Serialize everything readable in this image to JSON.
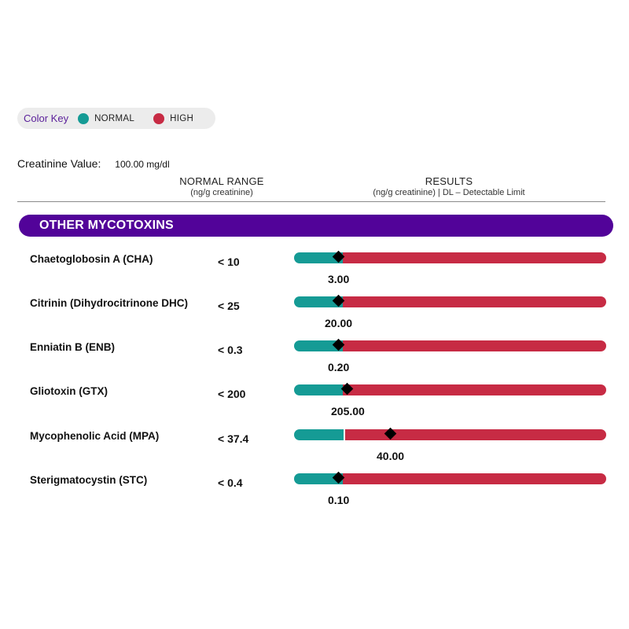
{
  "color_key": {
    "label": "Color Key",
    "items": [
      {
        "label": "NORMAL",
        "color": "#159b95"
      },
      {
        "label": "HIGH",
        "color": "#c72b44"
      }
    ]
  },
  "creatinine": {
    "label": "Creatinine Value:",
    "value": "100.00 mg/dl"
  },
  "headers": {
    "normal_range": "NORMAL RANGE",
    "normal_range_unit": "(ng/g creatinine)",
    "results": "RESULTS",
    "results_unit": "(ng/g creatinine) | DL – Detectable Limit"
  },
  "section": {
    "title": "OTHER MYCOTOXINS",
    "color": "#520399"
  },
  "rows": [
    {
      "name": "Chaetoglobosin A (CHA)",
      "range": "< 10",
      "result": "3.00",
      "status": "normal",
      "marker_fraction": 0.144
    },
    {
      "name": "Citrinin (Dihydrocitrinone DHC)",
      "range": "< 25",
      "result": "20.00",
      "status": "normal",
      "marker_fraction": 0.144
    },
    {
      "name": "Enniatin B (ENB)",
      "range": "< 0.3",
      "result": "0.20",
      "status": "normal",
      "marker_fraction": 0.144
    },
    {
      "name": "Gliotoxin (GTX)",
      "range": "< 200",
      "result": "205.00",
      "status": "high",
      "marker_fraction": 0.171
    },
    {
      "name": "Mycophenolic Acid (MPA)",
      "range": "< 37.4",
      "result": "40.00",
      "status": "high",
      "marker_fraction": 0.31
    },
    {
      "name": "Sterigmatocystin (STC)",
      "range": "< 0.4",
      "result": "0.10",
      "status": "normal",
      "marker_fraction": 0.144
    }
  ]
}
